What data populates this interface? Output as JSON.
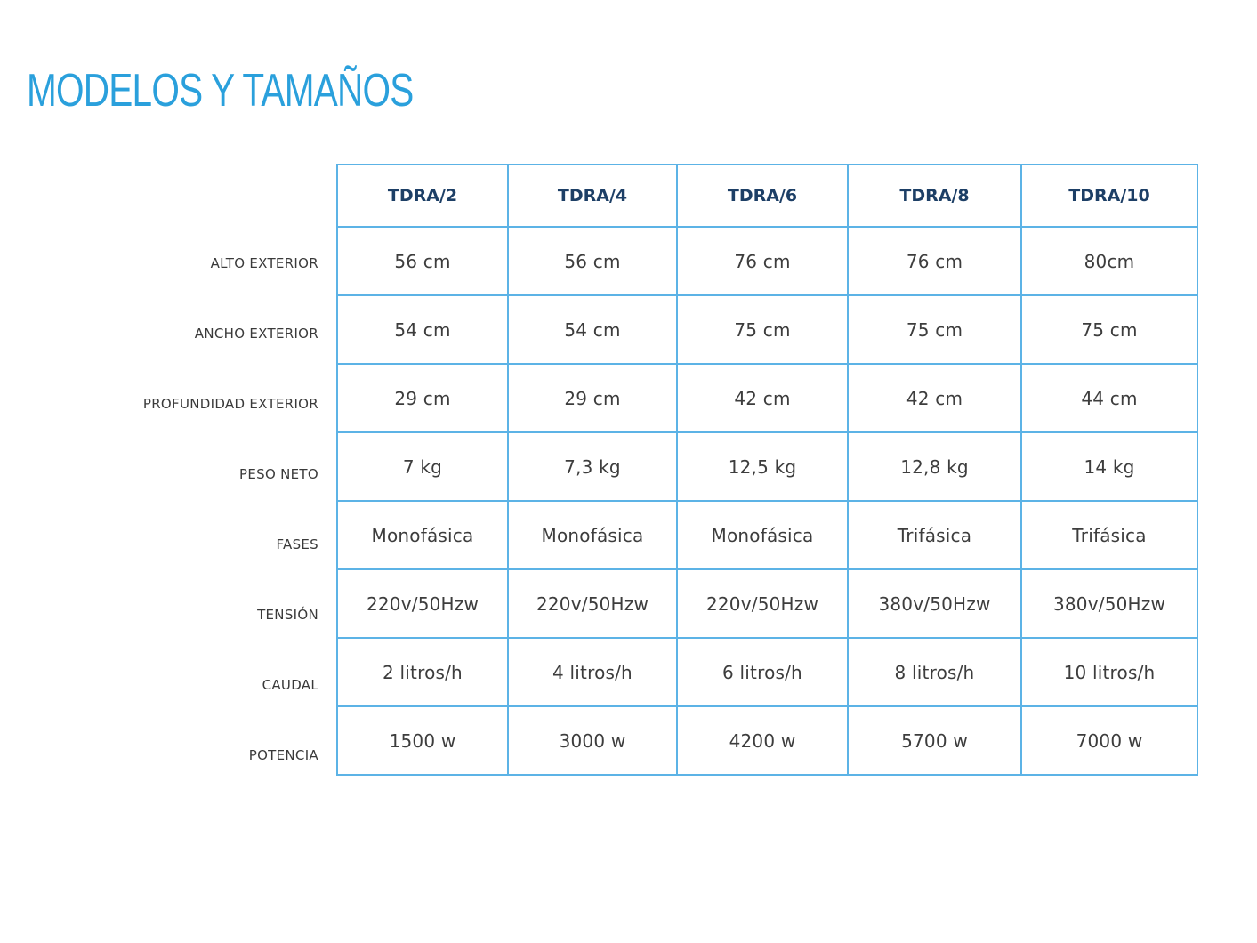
{
  "page": {
    "title": "MODELOS Y TAMAÑOS"
  },
  "colors": {
    "title": "#2aa0dc",
    "grid": "#5cb3e6",
    "header_text": "#1d3f66",
    "body_text": "#3d3d3d"
  },
  "table": {
    "models": [
      "TDRA/2",
      "TDRA/4",
      "TDRA/6",
      "TDRA/8",
      "TDRA/10"
    ],
    "rows": [
      {
        "label": "ALTO EXTERIOR",
        "values": [
          "56 cm",
          "56 cm",
          "76 cm",
          "76 cm",
          "80cm"
        ]
      },
      {
        "label": "ANCHO EXTERIOR",
        "values": [
          "54 cm",
          "54 cm",
          "75 cm",
          "75 cm",
          "75 cm"
        ]
      },
      {
        "label": "PROFUNDIDAD EXTERIOR",
        "values": [
          "29 cm",
          "29 cm",
          "42 cm",
          "42 cm",
          "44 cm"
        ]
      },
      {
        "label": "PESO NETO",
        "values": [
          "7 kg",
          "7,3 kg",
          "12,5 kg",
          "12,8 kg",
          "14 kg"
        ]
      },
      {
        "label": "FASES",
        "values": [
          "Monofásica",
          "Monofásica",
          "Monofásica",
          "Trifásica",
          "Trifásica"
        ]
      },
      {
        "label": "TENSIÓN",
        "values": [
          "220v/50Hzw",
          "220v/50Hzw",
          "220v/50Hzw",
          "380v/50Hzw",
          "380v/50Hzw"
        ]
      },
      {
        "label": "CAUDAL",
        "values": [
          "2 litros/h",
          "4 litros/h",
          "6 litros/h",
          "8 litros/h",
          "10 litros/h"
        ]
      },
      {
        "label": "POTENCIA",
        "values": [
          "1500 w",
          "3000 w",
          "4200 w",
          "5700 w",
          "7000 w"
        ]
      }
    ]
  }
}
